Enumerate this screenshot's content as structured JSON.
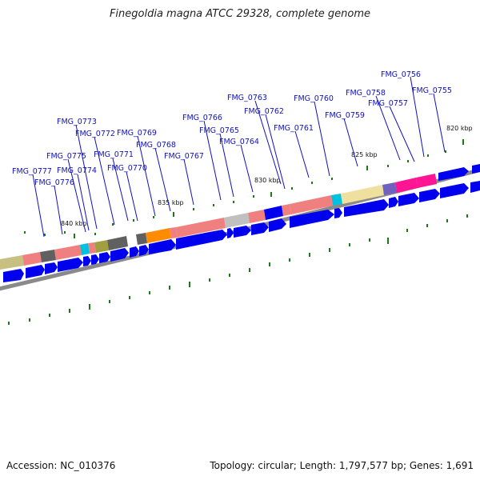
{
  "title": "Finegoldia magna ATCC 29328, complete genome",
  "accession": "Accession: NC_010376",
  "topology": "Topology: circular; Length: 1,797,577 bp; Genes: 1,691",
  "ticks": [
    "820 kbp",
    "825 kbp",
    "830 kbp",
    "835 kbp",
    "840 kbp"
  ],
  "genes": [
    "FMG_0756",
    "FMG_0755",
    "FMG_0758",
    "FMG_0757",
    "FMG_0760",
    "FMG_0759",
    "FMG_0763",
    "FMG_0762",
    "FMG_0761",
    "FMG_0773",
    "FMG_0766",
    "FMG_0772",
    "FMG_0769",
    "FMG_0765",
    "FMG_0768",
    "FMG_0764",
    "FMG_0775",
    "FMG_0771",
    "FMG_0767",
    "FMG_0777",
    "FMG_0774",
    "FMG_0770",
    "FMG_0776"
  ],
  "colors": {
    "label": "#1010c0",
    "cds": "#0000ee",
    "backbone": "#888888",
    "gc_ticks": "#1a7a1a",
    "segments": [
      "#c8c080",
      "#f08080",
      "#606060",
      "#00c0e0",
      "#a0a040",
      "#ff8c00",
      "#c0c0c0",
      "#f0e0a0",
      "#7060c0",
      "#ff1493"
    ]
  }
}
